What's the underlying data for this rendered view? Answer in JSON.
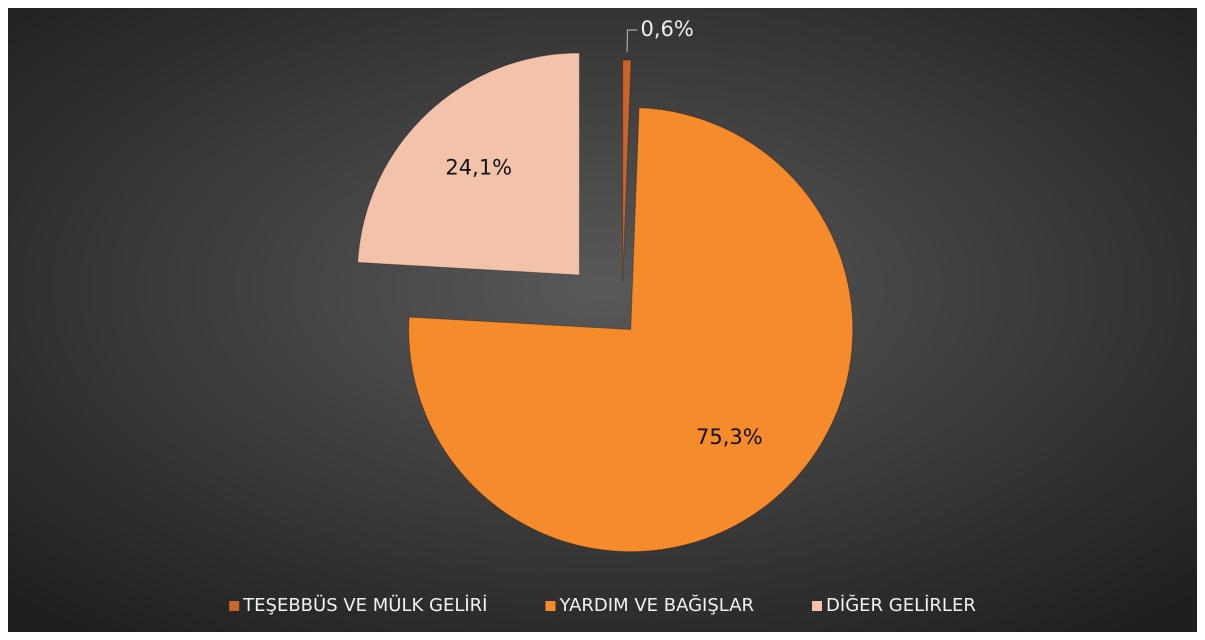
{
  "chart_data": {
    "type": "pie",
    "categories": [
      "TEŞEBBÜS VE MÜLK GELİRİ",
      "YARDIM VE BAĞIŞLAR",
      "DİĞER GELİRLER"
    ],
    "values": [
      0.6,
      75.3,
      24.1
    ],
    "value_labels": [
      "0,6%",
      "75,3%",
      "24,1%"
    ],
    "colors": [
      "#c9652b",
      "#f68b2c",
      "#f3c2ab"
    ],
    "legend": "bottom"
  }
}
